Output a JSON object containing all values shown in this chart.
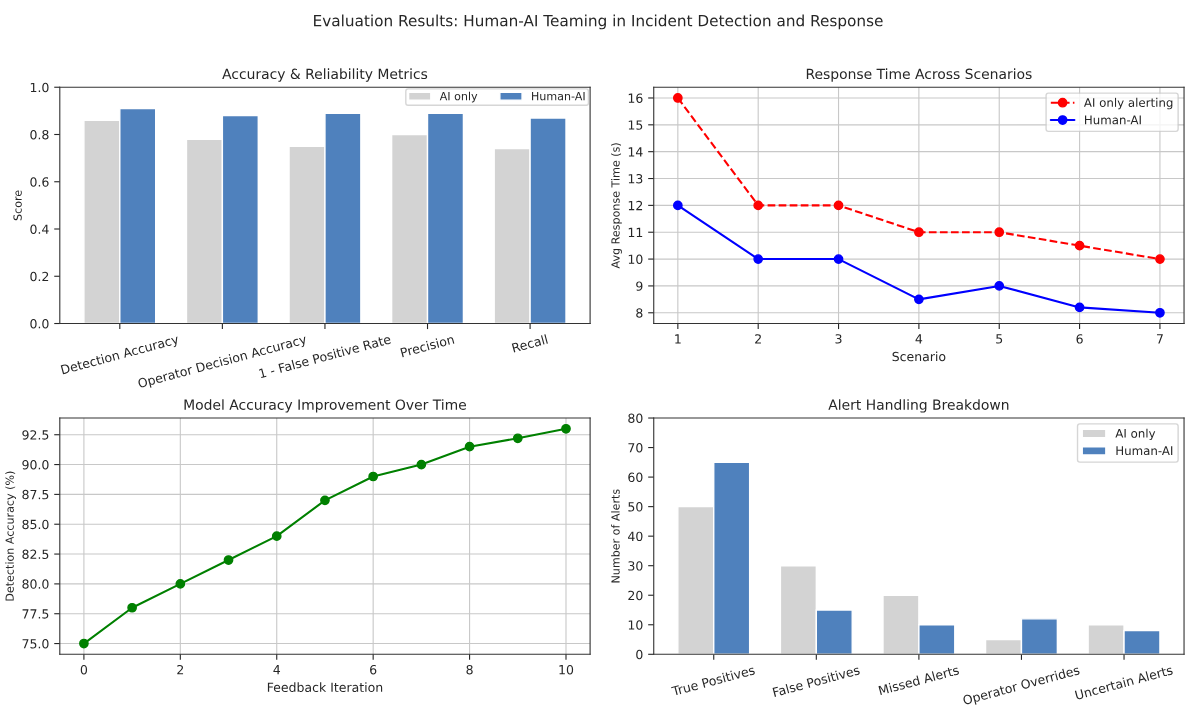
{
  "chart_data": [
    {
      "type": "bar",
      "title": "Accuracy & Reliability Metrics",
      "ylabel": "Score",
      "annotations": [
        "Evaluation Results: Human-AI Teaming in Incident Detection and Response"
      ],
      "categories": [
        "Detection Accuracy",
        "Operator Decision Accuracy",
        "1 - False Positive Rate",
        "Precision",
        "Recall"
      ],
      "series": [
        {
          "name": "AI only",
          "color": "#d3d3d3",
          "values": [
            0.86,
            0.78,
            0.75,
            0.8,
            0.74
          ]
        },
        {
          "name": "Human-AI",
          "color": "#4f81bd",
          "values": [
            0.91,
            0.88,
            0.89,
            0.89,
            0.87
          ]
        }
      ],
      "ylim": [
        0,
        1
      ],
      "yticks": [
        {
          "value": 0,
          "label": "0.0"
        },
        0.2,
        0.4,
        0.6,
        0.8,
        {
          "value": 1,
          "label": "1.0"
        }
      ],
      "legend": "top right",
      "grid": false
    },
    {
      "type": "line",
      "title": "Response Time Across Scenarios",
      "xlabel": "Scenario",
      "ylabel": "Avg Response Time (s)",
      "x": [
        1,
        2,
        3,
        4,
        5,
        6,
        7
      ],
      "series": [
        {
          "name": "AI only alerting",
          "color": "#ff0000",
          "line_style": "dashed",
          "marker": "circle",
          "values": [
            16,
            12,
            12,
            11,
            11,
            10.5,
            10
          ]
        },
        {
          "name": "Human-AI",
          "color": "#0000ff",
          "line_style": "solid",
          "marker": "circle",
          "values": [
            12,
            10,
            10,
            8.5,
            9,
            8.2,
            8
          ]
        }
      ],
      "xlim": [
        0.7,
        7.3
      ],
      "xticks": [
        1,
        2,
        3,
        4,
        5,
        6,
        7
      ],
      "ylim": [
        7.6,
        16.4
      ],
      "yticks": [
        8,
        9,
        10,
        11,
        12,
        13,
        14,
        15,
        16
      ],
      "grid": true,
      "legend": "top right"
    },
    {
      "type": "line",
      "title": "Model Accuracy Improvement Over Time",
      "xlabel": "Feedback Iteration",
      "ylabel": "Detection Accuracy (%)",
      "x": [
        0,
        1,
        2,
        3,
        4,
        5,
        6,
        7,
        8,
        9,
        10
      ],
      "series": [
        {
          "color": "#008000",
          "line_style": "solid",
          "marker": "circle",
          "values": [
            75,
            78,
            80,
            82,
            84,
            87,
            89,
            90,
            91.5,
            92.2,
            93
          ]
        }
      ],
      "xlim": [
        -0.5,
        10.5
      ],
      "xticks": [
        0,
        2,
        4,
        6,
        8,
        10
      ],
      "ylim": [
        74.1,
        93.9
      ],
      "yticks": [
        {
          "value": 75,
          "label": "75.0"
        },
        77.5,
        {
          "value": 80,
          "label": "80.0"
        },
        82.5,
        {
          "value": 85,
          "label": "85.0"
        },
        87.5,
        {
          "value": 90,
          "label": "90.0"
        },
        92.5
      ],
      "grid": true
    },
    {
      "type": "bar",
      "title": "Alert Handling Breakdown",
      "ylabel": "Number of Alerts",
      "categories": [
        "True Positives",
        "False Positives",
        "Missed Alerts",
        "Operator Overrides",
        "Uncertain Alerts"
      ],
      "series": [
        {
          "name": "AI only",
          "color": "#d3d3d3",
          "values": [
            50,
            30,
            20,
            5,
            10
          ]
        },
        {
          "name": "Human-AI",
          "color": "#4f81bd",
          "values": [
            65,
            15,
            10,
            12,
            8
          ]
        }
      ],
      "ylim": [
        0,
        80
      ],
      "yticks": [
        0,
        10,
        20,
        30,
        40,
        50,
        60,
        70,
        80
      ],
      "legend": "top right",
      "grid": false
    }
  ]
}
